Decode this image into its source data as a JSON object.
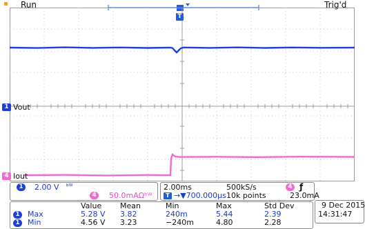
{
  "top_bar": {
    "run_state": "Run",
    "trigger_state": "Trig'd"
  },
  "colors": {
    "ch1": "#1f3fd8",
    "ch4": "#f06ad0",
    "grid": "#b8b8b8",
    "ch1_label_text": "#1a3ad0",
    "ch4_label_text": "#e050c8"
  },
  "waveform": {
    "ch1_label": "Vout",
    "ch4_label": "Iout",
    "ch1_marker": "1",
    "ch4_marker": "4",
    "trigger_marker": "T"
  },
  "channel_panel": {
    "ch1_badge": "1",
    "ch1_scale": "2.00 V",
    "ch1_bw_icon": "bandwidth-limit-icon",
    "ch1_bw_glyph": "ᵇᵂ",
    "ch4_badge": "4",
    "ch4_scale": "50.0mAΩᵇᵂ"
  },
  "timebase_panel": {
    "time_per_div": "2.00ms",
    "sample_rate": "500kS/s",
    "trigger_source_badge": "4",
    "trigger_slope_glyph": "ƒ",
    "delay_glyph": "T",
    "delay": "→▼700.000µs",
    "record_length": "10k points",
    "trigger_level": "23.0mA"
  },
  "measurements": {
    "headers": [
      "Value",
      "Mean",
      "Min",
      "Max",
      "Std Dev"
    ],
    "rows": [
      {
        "badge": "1",
        "label": "Max",
        "value": "5.28 V",
        "mean": "3.82",
        "min": "240m",
        "max": "5.44",
        "std": "2.39"
      },
      {
        "badge": "1",
        "label": "Min",
        "value": "4.56 V",
        "mean": "3.23",
        "min": "−240m",
        "max": "4.80",
        "std": "2.28"
      }
    ]
  },
  "datetime": {
    "date": "9 Dec  2015",
    "time": "14:31:47"
  }
}
